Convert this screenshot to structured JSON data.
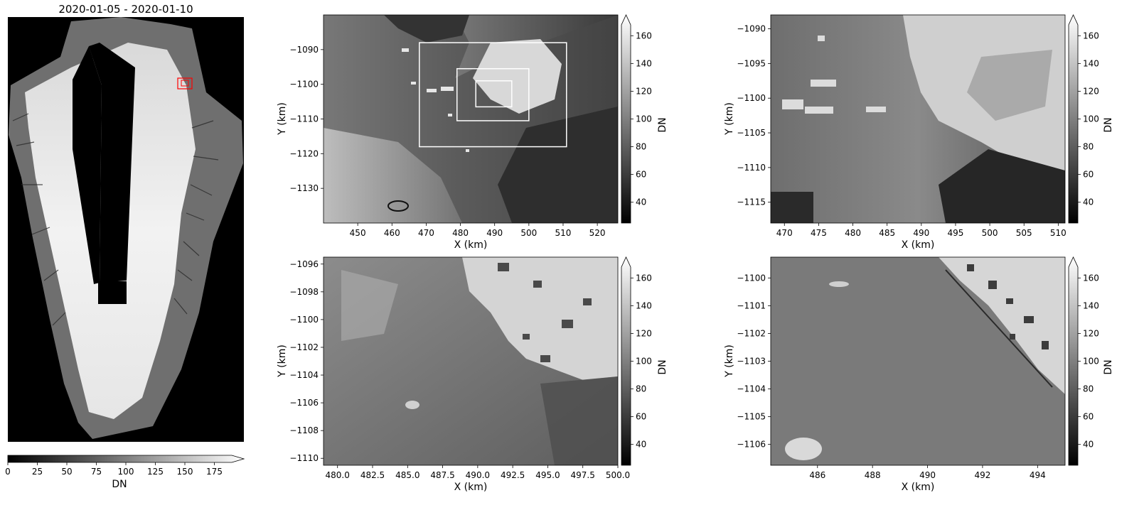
{
  "figure": {
    "title": "2020-01-05 - 2020-01-10",
    "overview_colorbar": {
      "label": "DN",
      "ticks": [
        "0",
        "25",
        "50",
        "75",
        "100",
        "125",
        "150",
        "175"
      ],
      "range": [
        0,
        200
      ],
      "extend": "max"
    }
  },
  "chart_data": [
    {
      "type": "heatmap",
      "panel": "overview",
      "title": "2020-01-05 - 2020-01-10",
      "colormap": "gray",
      "highlight_box_color": "#ff0000",
      "xlabel": "",
      "ylabel": "",
      "colorbar": {
        "label": "DN",
        "range": [
          0,
          200
        ],
        "ticks": [
          0,
          25,
          50,
          75,
          100,
          125,
          150,
          175
        ],
        "orientation": "horizontal"
      }
    },
    {
      "type": "heatmap",
      "panel": "zoom-1",
      "colormap": "gray",
      "xlabel": "X (km)",
      "ylabel": "Y (km)",
      "xlim": [
        440,
        526
      ],
      "ylim": [
        -1140,
        -1080
      ],
      "xticks": [
        450,
        460,
        470,
        480,
        490,
        500,
        510,
        520
      ],
      "yticks": [
        -1090,
        -1100,
        -1110,
        -1120,
        -1130
      ],
      "colorbar": {
        "label": "DN",
        "range": [
          25,
          175
        ],
        "ticks": [
          40,
          60,
          80,
          100,
          120,
          140,
          160
        ],
        "extend": "max"
      },
      "inset_boxes": [
        {
          "x": [
            468,
            511
          ],
          "y": [
            -1118,
            -1088
          ]
        },
        {
          "x": [
            479,
            500
          ],
          "y": [
            -1110.5,
            -1095.5
          ]
        },
        {
          "x": [
            484.5,
            495
          ],
          "y": [
            -1106.5,
            -1099
          ]
        }
      ]
    },
    {
      "type": "heatmap",
      "panel": "zoom-2",
      "colormap": "gray",
      "xlabel": "X (km)",
      "ylabel": "Y (km)",
      "xlim": [
        468,
        511
      ],
      "ylim": [
        -1118,
        -1088
      ],
      "xticks": [
        470,
        475,
        480,
        485,
        490,
        495,
        500,
        505,
        510
      ],
      "yticks": [
        -1090,
        -1095,
        -1100,
        -1105,
        -1110,
        -1115
      ],
      "colorbar": {
        "label": "DN",
        "range": [
          25,
          175
        ],
        "ticks": [
          40,
          60,
          80,
          100,
          120,
          140,
          160
        ],
        "extend": "max"
      }
    },
    {
      "type": "heatmap",
      "panel": "zoom-3",
      "colormap": "gray",
      "xlabel": "X (km)",
      "ylabel": "Y (km)",
      "xlim": [
        479,
        500
      ],
      "ylim": [
        -1110.5,
        -1095.5
      ],
      "xticks": [
        "480.0",
        "482.5",
        "485.0",
        "487.5",
        "490.0",
        "492.5",
        "495.0",
        "497.5",
        "500.0"
      ],
      "yticks": [
        -1096,
        -1098,
        -1100,
        -1102,
        -1104,
        -1106,
        -1108,
        -1110
      ],
      "colorbar": {
        "label": "DN",
        "range": [
          25,
          175
        ],
        "ticks": [
          40,
          60,
          80,
          100,
          120,
          140,
          160
        ],
        "extend": "max"
      }
    },
    {
      "type": "heatmap",
      "panel": "zoom-4",
      "colormap": "gray",
      "xlabel": "X (km)",
      "ylabel": "Y (km)",
      "xlim": [
        484.3,
        495
      ],
      "ylim": [
        -1106.75,
        -1099.25
      ],
      "xticks": [
        486,
        488,
        490,
        492,
        494
      ],
      "yticks": [
        -1100,
        -1101,
        -1102,
        -1103,
        -1104,
        -1105,
        -1106
      ],
      "colorbar": {
        "label": "DN",
        "range": [
          25,
          175
        ],
        "ticks": [
          40,
          60,
          80,
          100,
          120,
          140,
          160
        ],
        "extend": "max"
      }
    }
  ]
}
